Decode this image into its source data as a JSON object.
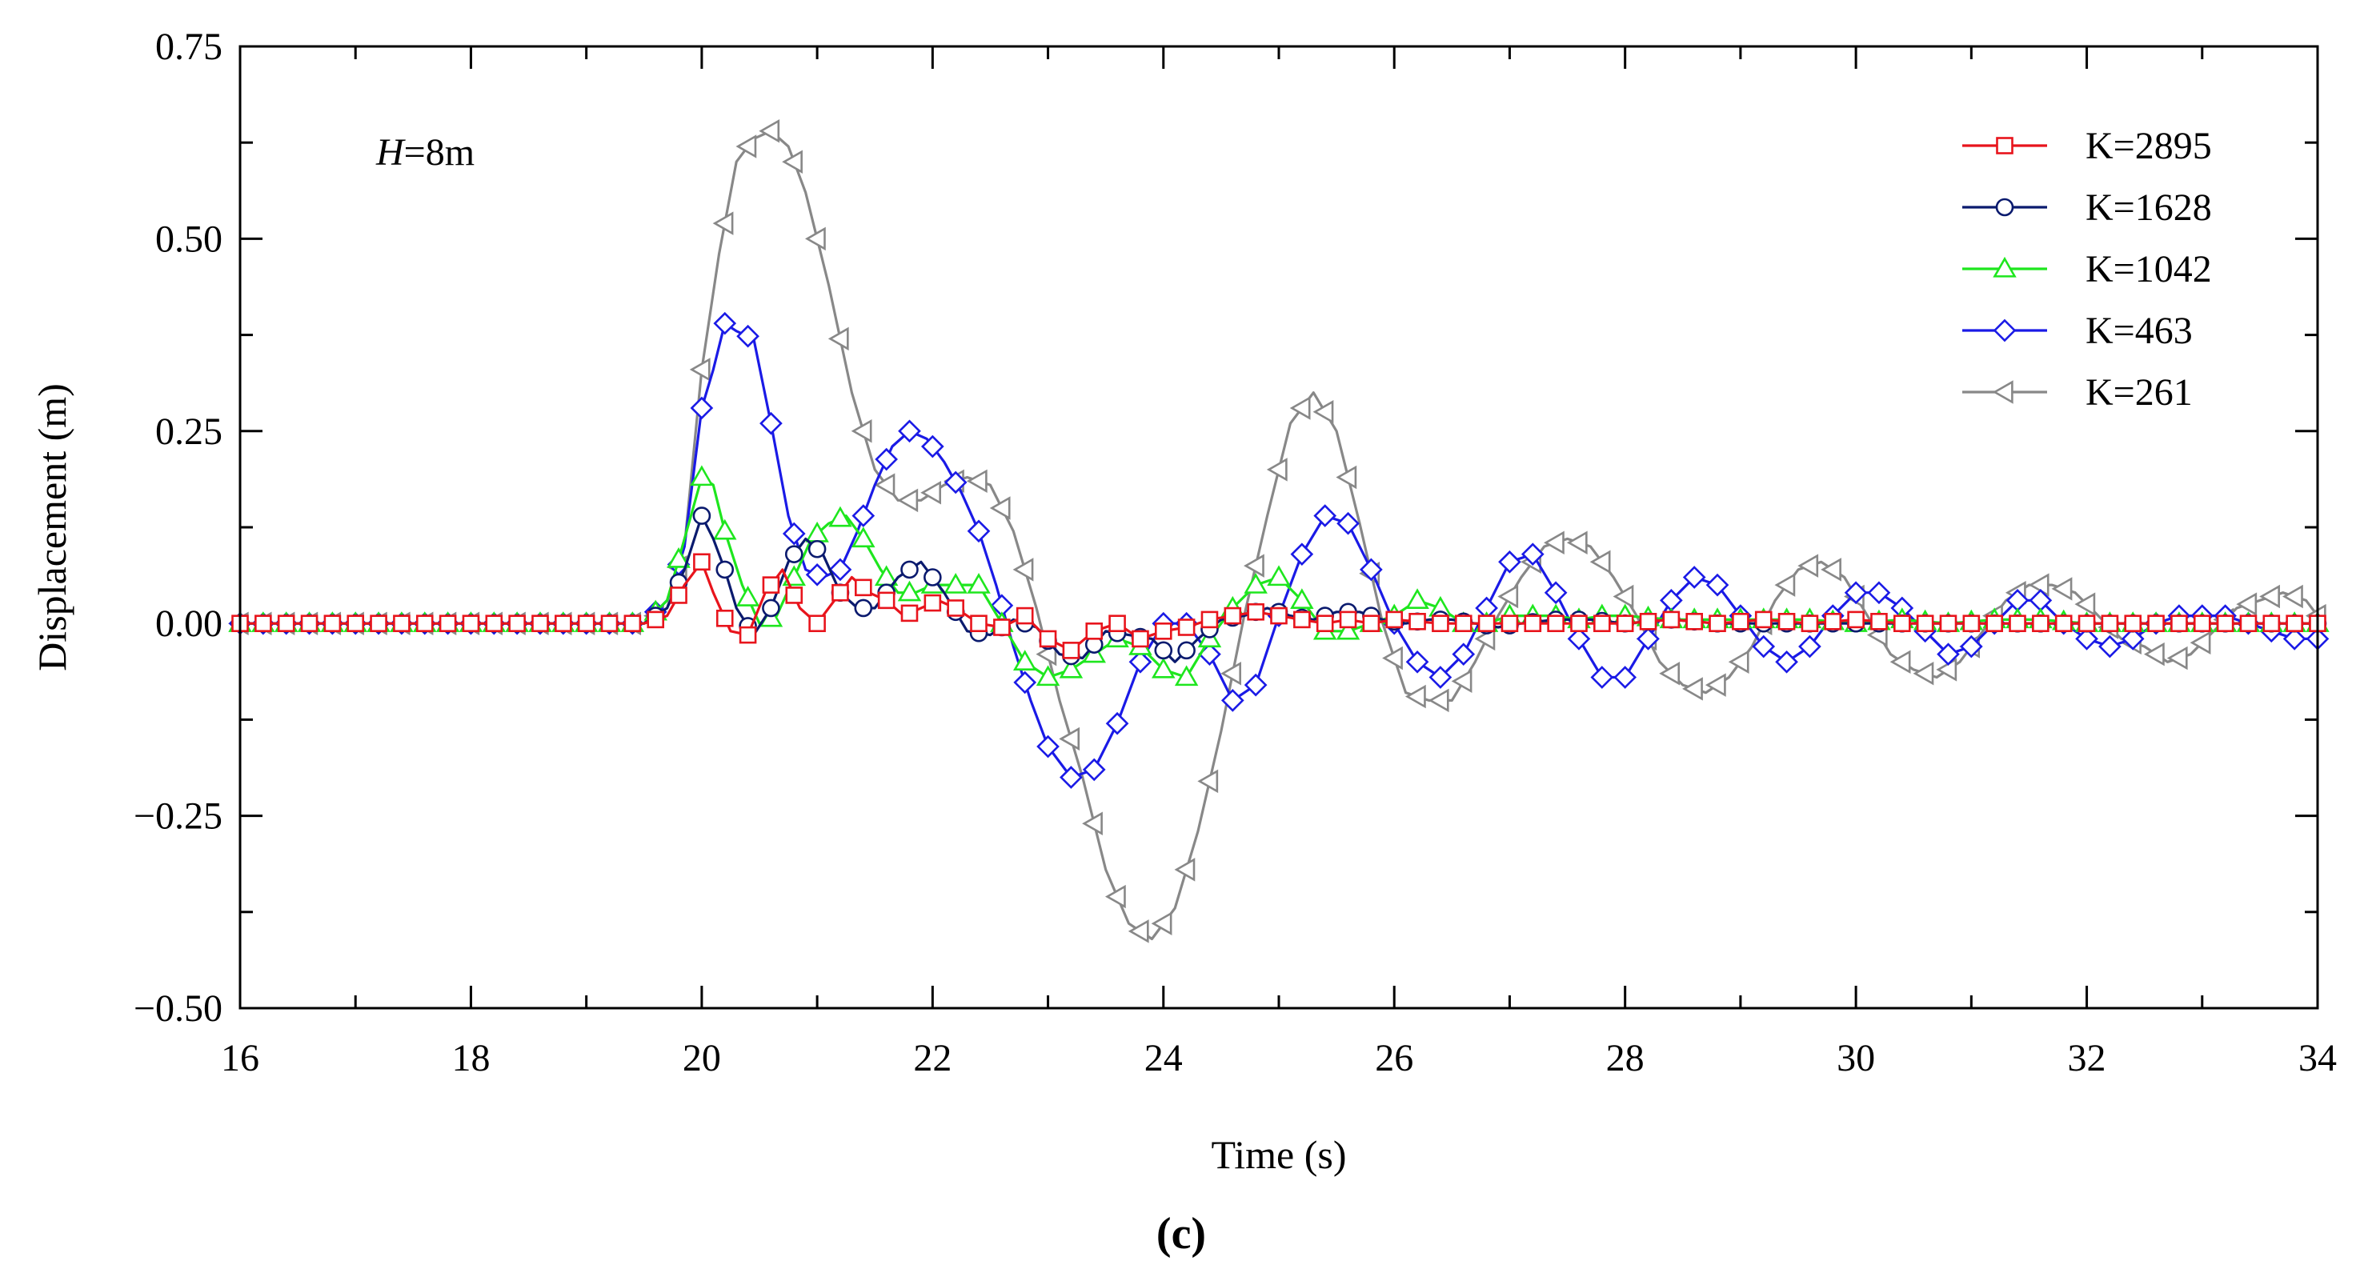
{
  "chart_data": {
    "type": "line",
    "title": "",
    "xlabel": "Time (s)",
    "ylabel": "Displacement (m)",
    "xlim": [
      16,
      34
    ],
    "ylim": [
      -0.5,
      0.75
    ],
    "xticks": [
      16,
      18,
      20,
      22,
      24,
      26,
      28,
      30,
      32,
      34
    ],
    "xtick_labels": [
      "16",
      "18",
      "20",
      "22",
      "24",
      "26",
      "28",
      "30",
      "32",
      "34"
    ],
    "yticks": [
      -0.5,
      -0.25,
      0,
      0.25,
      0.5,
      0.75
    ],
    "ytick_labels": [
      "−0.50",
      "−0.25",
      "0.00",
      "0.25",
      "0.50",
      "0.75"
    ],
    "annotation_italic": "H",
    "annotation_rest": "=8m",
    "panel_label": "(c)",
    "legend_position": "top-right",
    "series": [
      {
        "name": "K=2895",
        "color": "#e8141c",
        "marker": "square",
        "x": [
          16,
          19.5,
          19.7,
          19.85,
          20,
          20.1,
          20.25,
          20.4,
          20.55,
          20.7,
          20.85,
          21,
          21.15,
          21.3,
          21.45,
          21.6,
          21.75,
          21.9,
          22.05,
          22.2,
          22.4,
          22.6,
          22.8,
          23,
          23.2,
          23.4,
          23.6,
          23.8,
          24,
          24.2,
          24.4,
          24.6,
          24.8,
          25,
          25.2,
          25.4,
          25.6,
          25.8,
          26,
          26.4,
          26.8,
          27.2,
          27.6,
          28,
          28.4,
          28.8,
          29.2,
          29.6,
          30,
          30.4,
          30.8,
          31.2,
          31.6,
          32,
          32.4,
          32.8,
          33.2,
          33.6,
          34
        ],
        "y": [
          0,
          0,
          0.01,
          0.05,
          0.08,
          0.04,
          -0.01,
          -0.015,
          0.04,
          0.07,
          0.02,
          0,
          0.03,
          0.06,
          0.04,
          0.03,
          0.01,
          0.02,
          0.03,
          0.02,
          0,
          -0.005,
          0.01,
          -0.02,
          -0.035,
          -0.01,
          0,
          -0.02,
          -0.01,
          -0.005,
          0.005,
          0.01,
          0.015,
          0.01,
          0.005,
          0,
          0.005,
          0,
          0.005,
          0,
          0,
          0,
          0,
          0,
          0.005,
          0,
          0.005,
          0,
          0.005,
          0,
          0,
          0,
          0,
          0,
          0,
          0,
          0,
          0,
          0
        ]
      },
      {
        "name": "K=1628",
        "color": "#0a1a6e",
        "marker": "circle",
        "x": [
          16,
          19.5,
          19.7,
          19.85,
          20,
          20.1,
          20.2,
          20.3,
          20.45,
          20.6,
          20.75,
          20.9,
          21.05,
          21.2,
          21.35,
          21.5,
          21.7,
          21.9,
          22.1,
          22.3,
          22.5,
          22.7,
          22.9,
          23.1,
          23.3,
          23.5,
          23.7,
          23.9,
          24.1,
          24.3,
          24.5,
          24.7,
          24.9,
          25.1,
          25.3,
          25.5,
          25.7,
          25.9,
          26.1,
          26.3,
          26.5,
          26.7,
          26.9,
          27.1,
          27.4,
          27.7,
          28,
          28.4,
          28.8,
          29.2,
          29.6,
          30,
          30.4,
          30.8,
          31.2,
          31.6,
          32,
          32.4,
          32.8,
          33.2,
          33.6,
          34
        ],
        "y": [
          0,
          0,
          0.02,
          0.07,
          0.14,
          0.11,
          0.07,
          0.02,
          -0.015,
          0.02,
          0.08,
          0.11,
          0.09,
          0.04,
          0.02,
          0.02,
          0.06,
          0.08,
          0.04,
          -0.01,
          -0.015,
          0.005,
          -0.005,
          -0.04,
          -0.045,
          -0.01,
          -0.015,
          -0.02,
          -0.05,
          -0.02,
          0.005,
          0.01,
          0.02,
          0.01,
          0.005,
          0.015,
          0.015,
          0.005,
          0,
          0.005,
          0.005,
          0,
          -0.005,
          0,
          0.005,
          0.005,
          0,
          0.005,
          0,
          0,
          0,
          0,
          0,
          0,
          0,
          0,
          0,
          0,
          0,
          0,
          0,
          0
        ]
      },
      {
        "name": "K=1042",
        "color": "#1ee61e",
        "marker": "triangle",
        "x": [
          16,
          19.5,
          19.7,
          19.85,
          20,
          20.1,
          20.2,
          20.35,
          20.5,
          20.65,
          20.8,
          20.95,
          21.1,
          21.25,
          21.4,
          21.55,
          21.7,
          21.85,
          22,
          22.2,
          22.4,
          22.6,
          22.8,
          23,
          23.2,
          23.4,
          23.6,
          23.8,
          24,
          24.2,
          24.4,
          24.6,
          24.8,
          25,
          25.2,
          25.4,
          25.6,
          25.8,
          26,
          26.2,
          26.4,
          26.6,
          26.8,
          27,
          27.2,
          27.4,
          27.6,
          27.8,
          28,
          28.4,
          28.8,
          29.2,
          29.6,
          30,
          30.4,
          30.8,
          31.2,
          31.6,
          32,
          32.4,
          32.8,
          33.2,
          33.6,
          34
        ],
        "y": [
          0,
          0,
          0.03,
          0.11,
          0.19,
          0.18,
          0.12,
          0.05,
          0,
          0.01,
          0.06,
          0.11,
          0.13,
          0.14,
          0.11,
          0.07,
          0.04,
          0.04,
          0.05,
          0.05,
          0.05,
          0,
          -0.05,
          -0.07,
          -0.06,
          -0.04,
          -0.02,
          -0.03,
          -0.06,
          -0.07,
          -0.02,
          0.02,
          0.05,
          0.06,
          0.03,
          -0.01,
          -0.01,
          0,
          0.01,
          0.03,
          0.02,
          0,
          0,
          0.01,
          0.01,
          0.01,
          0.005,
          0.01,
          0.01,
          0.005,
          0.005,
          0.005,
          0.005,
          0,
          0.005,
          0,
          0.005,
          0.005,
          0,
          0,
          0,
          0,
          0,
          0
        ]
      },
      {
        "name": "K=463",
        "color": "#1a1ae6",
        "marker": "diamond",
        "x": [
          16,
          19.5,
          19.7,
          19.85,
          20,
          20.1,
          20.2,
          20.3,
          20.45,
          20.6,
          20.75,
          20.9,
          21.05,
          21.2,
          21.35,
          21.5,
          21.65,
          21.8,
          21.95,
          22.1,
          22.25,
          22.4,
          22.55,
          22.7,
          22.85,
          23,
          23.2,
          23.4,
          23.6,
          23.8,
          24,
          24.2,
          24.4,
          24.6,
          24.8,
          25,
          25.2,
          25.4,
          25.6,
          25.8,
          26,
          26.2,
          26.4,
          26.6,
          26.8,
          27,
          27.2,
          27.4,
          27.6,
          27.8,
          28,
          28.2,
          28.4,
          28.6,
          28.8,
          29,
          29.2,
          29.4,
          29.6,
          29.8,
          30,
          30.2,
          30.4,
          30.6,
          30.8,
          31,
          31.2,
          31.4,
          31.6,
          31.8,
          32,
          32.2,
          32.4,
          32.6,
          32.8,
          33,
          33.2,
          33.4,
          33.6,
          33.8,
          34
        ],
        "y": [
          0,
          0,
          0.03,
          0.1,
          0.28,
          0.33,
          0.39,
          0.38,
          0.37,
          0.26,
          0.14,
          0.07,
          0.06,
          0.07,
          0.12,
          0.18,
          0.23,
          0.25,
          0.24,
          0.21,
          0.17,
          0.12,
          0.05,
          -0.03,
          -0.1,
          -0.16,
          -0.2,
          -0.19,
          -0.13,
          -0.05,
          0,
          0,
          -0.04,
          -0.1,
          -0.08,
          0.01,
          0.09,
          0.14,
          0.13,
          0.07,
          0,
          -0.05,
          -0.07,
          -0.04,
          0.02,
          0.08,
          0.09,
          0.04,
          -0.02,
          -0.07,
          -0.07,
          -0.02,
          0.03,
          0.06,
          0.05,
          0.01,
          -0.03,
          -0.05,
          -0.03,
          0.01,
          0.04,
          0.04,
          0.02,
          -0.01,
          -0.04,
          -0.03,
          0,
          0.03,
          0.03,
          0,
          -0.02,
          -0.03,
          -0.02,
          0,
          0.01,
          0.01,
          0.01,
          0,
          -0.01,
          -0.02,
          -0.02
        ]
      },
      {
        "name": "K=261",
        "color": "#888888",
        "marker": "triangle-left",
        "x": [
          16,
          19.5,
          19.7,
          19.85,
          20,
          20.15,
          20.3,
          20.45,
          20.6,
          20.75,
          20.9,
          21.1,
          21.3,
          21.5,
          21.7,
          21.9,
          22.1,
          22.3,
          22.5,
          22.7,
          22.9,
          23.1,
          23.3,
          23.5,
          23.7,
          23.9,
          24.1,
          24.3,
          24.5,
          24.7,
          24.9,
          25.1,
          25.3,
          25.5,
          25.7,
          25.9,
          26.1,
          26.3,
          26.5,
          26.7,
          26.9,
          27.1,
          27.3,
          27.5,
          27.7,
          27.9,
          28.1,
          28.3,
          28.5,
          28.7,
          28.9,
          29.1,
          29.3,
          29.5,
          29.7,
          29.9,
          30.1,
          30.3,
          30.5,
          30.7,
          30.9,
          31.1,
          31.3,
          31.5,
          31.7,
          31.9,
          32.1,
          32.3,
          32.5,
          32.7,
          32.9,
          33.1,
          33.3,
          33.5,
          33.7,
          33.9,
          34
        ],
        "y": [
          0,
          0,
          0.02,
          0.1,
          0.33,
          0.48,
          0.6,
          0.63,
          0.64,
          0.62,
          0.56,
          0.44,
          0.3,
          0.2,
          0.16,
          0.16,
          0.18,
          0.19,
          0.18,
          0.12,
          0.02,
          -0.1,
          -0.2,
          -0.32,
          -0.39,
          -0.41,
          -0.37,
          -0.27,
          -0.14,
          0.01,
          0.14,
          0.26,
          0.3,
          0.25,
          0.13,
          0,
          -0.09,
          -0.1,
          -0.1,
          -0.05,
          0.01,
          0.06,
          0.1,
          0.11,
          0.1,
          0.06,
          0.01,
          -0.05,
          -0.08,
          -0.09,
          -0.07,
          -0.03,
          0.03,
          0.07,
          0.08,
          0.06,
          0.01,
          -0.04,
          -0.06,
          -0.07,
          -0.05,
          -0.01,
          0.03,
          0.05,
          0.05,
          0.04,
          0.01,
          -0.02,
          -0.03,
          -0.05,
          -0.04,
          -0.01,
          0.02,
          0.03,
          0.04,
          0.03,
          0.01
        ]
      }
    ]
  }
}
